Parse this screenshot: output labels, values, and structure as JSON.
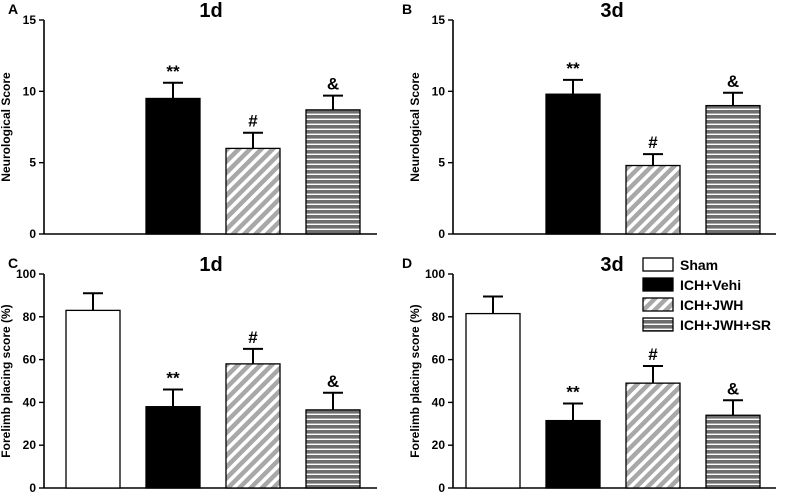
{
  "colors": {
    "sham": "#ffffff",
    "vehi": "#000000",
    "jwh_stripe": "#a8a8a8",
    "sr_fill": "#6e6e6e",
    "axis": "#000000"
  },
  "legend": {
    "items": [
      {
        "label": "Sham",
        "pattern": "sham"
      },
      {
        "label": "ICH+Vehi",
        "pattern": "vehi"
      },
      {
        "label": "ICH+JWH",
        "pattern": "jwh"
      },
      {
        "label": "ICH+JWH+SR",
        "pattern": "sr"
      }
    ]
  },
  "chart_data": [
    {
      "panel": "A",
      "type": "bar",
      "title": "1d",
      "ylabel": "Neurological  Score",
      "xlabel": "",
      "ylim": [
        0,
        15
      ],
      "yticks": [
        0,
        5,
        10,
        15
      ],
      "categories": [
        "Sham",
        "ICH+Vehi",
        "ICH+JWH",
        "ICH+JWH+SR"
      ],
      "values": [
        0,
        9.5,
        6.0,
        8.7
      ],
      "errors": [
        0,
        1.1,
        1.1,
        1.0
      ],
      "annotations": [
        "",
        "**",
        "#",
        "&"
      ]
    },
    {
      "panel": "B",
      "type": "bar",
      "title": "3d",
      "ylabel": "Neurological  Score",
      "xlabel": "",
      "ylim": [
        0,
        15
      ],
      "yticks": [
        0,
        5,
        10,
        15
      ],
      "categories": [
        "Sham",
        "ICH+Vehi",
        "ICH+JWH",
        "ICH+JWH+SR"
      ],
      "values": [
        0,
        9.8,
        4.8,
        9.0
      ],
      "errors": [
        0,
        1.0,
        0.8,
        0.9
      ],
      "annotations": [
        "",
        "**",
        "#",
        "&"
      ]
    },
    {
      "panel": "C",
      "type": "bar",
      "title": "1d",
      "ylabel": "Forelimb placing score (%)",
      "xlabel": "",
      "ylim": [
        0,
        100
      ],
      "yticks": [
        0,
        20,
        40,
        60,
        80,
        100
      ],
      "categories": [
        "Sham",
        "ICH+Vehi",
        "ICH+JWH",
        "ICH+JWH+SR"
      ],
      "values": [
        83,
        38,
        58,
        36.5
      ],
      "errors": [
        8,
        8,
        7,
        8
      ],
      "annotations": [
        "",
        "**",
        "#",
        "&"
      ]
    },
    {
      "panel": "D",
      "type": "bar",
      "title": "3d",
      "ylabel": "Forelimb placing score (%)",
      "xlabel": "",
      "ylim": [
        0,
        100
      ],
      "yticks": [
        0,
        20,
        40,
        60,
        80,
        100
      ],
      "categories": [
        "Sham",
        "ICH+Vehi",
        "ICH+JWH",
        "ICH+JWH+SR"
      ],
      "values": [
        81.5,
        31.5,
        49,
        34
      ],
      "errors": [
        8,
        8,
        8,
        7
      ],
      "annotations": [
        "",
        "**",
        "#",
        "&"
      ]
    }
  ]
}
